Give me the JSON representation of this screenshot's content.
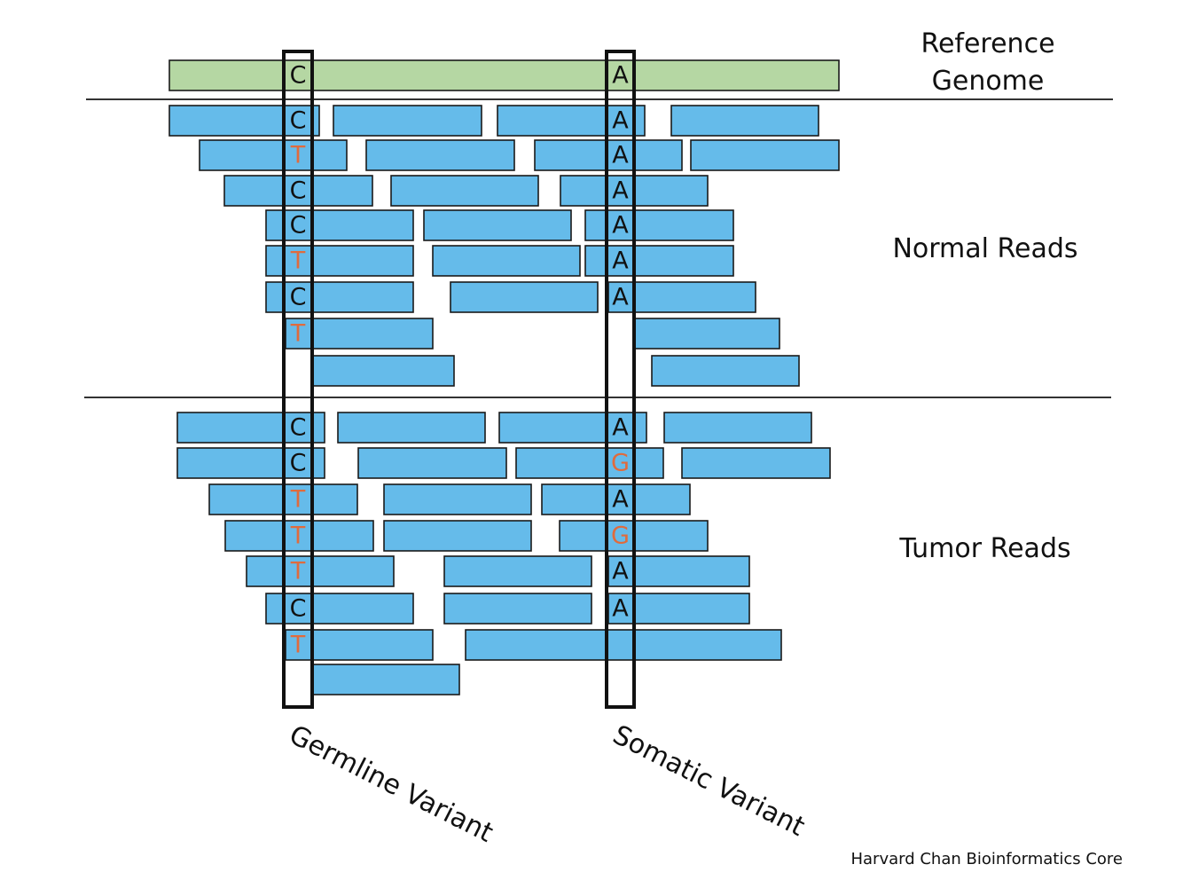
{
  "colors": {
    "read_fill": "#65bbea",
    "reference_fill": "#b5d7a3",
    "variant_base": "#e06b3d",
    "normal_base": "#111111"
  },
  "labels": {
    "reference_line1": "Reference",
    "reference_line2": "Genome",
    "normal_reads": "Normal Reads",
    "tumor_reads": "Tumor Reads",
    "germline_variant": "Germline Variant",
    "somatic_variant": "Somatic Variant",
    "credit": "Harvard Chan Bioinformatics Core"
  },
  "reference": {
    "germline_base": "C",
    "somatic_base": "A"
  },
  "normal_reads": {
    "germline_column": [
      {
        "base": "C",
        "variant": false
      },
      {
        "base": "T",
        "variant": true
      },
      {
        "base": "C",
        "variant": false
      },
      {
        "base": "C",
        "variant": false
      },
      {
        "base": "T",
        "variant": true
      },
      {
        "base": "C",
        "variant": false
      },
      {
        "base": "T",
        "variant": true
      }
    ],
    "somatic_column": [
      {
        "base": "A",
        "variant": false
      },
      {
        "base": "A",
        "variant": false
      },
      {
        "base": "A",
        "variant": false
      },
      {
        "base": "A",
        "variant": false
      },
      {
        "base": "A",
        "variant": false
      },
      {
        "base": "A",
        "variant": false
      }
    ]
  },
  "tumor_reads": {
    "germline_column": [
      {
        "base": "C",
        "variant": false
      },
      {
        "base": "C",
        "variant": false
      },
      {
        "base": "T",
        "variant": true
      },
      {
        "base": "T",
        "variant": true
      },
      {
        "base": "T",
        "variant": true
      },
      {
        "base": "C",
        "variant": false
      },
      {
        "base": "T",
        "variant": true
      }
    ],
    "somatic_column": [
      {
        "base": "A",
        "variant": false
      },
      {
        "base": "G",
        "variant": true
      },
      {
        "base": "A",
        "variant": false
      },
      {
        "base": "G",
        "variant": true
      },
      {
        "base": "A",
        "variant": false
      },
      {
        "base": "A",
        "variant": false
      }
    ]
  }
}
